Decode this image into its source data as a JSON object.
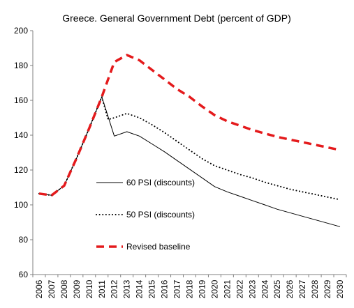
{
  "chart_data": {
    "type": "line",
    "title": "Greece.  General Government Debt (percent of GDP)",
    "xlabel": "",
    "ylabel": "",
    "ylim": [
      60,
      200
    ],
    "yticks": [
      60,
      80,
      100,
      120,
      140,
      160,
      180,
      200
    ],
    "grid": false,
    "legend_position": "inside-left",
    "categories": [
      "2006",
      "2007",
      "2008",
      "2009",
      "2010",
      "2011",
      "2012",
      "2013",
      "2014",
      "2015",
      "2016",
      "2017",
      "2018",
      "2019",
      "2020",
      "2021",
      "2022",
      "2023",
      "2024",
      "2025",
      "2026",
      "2027",
      "2028",
      "2029",
      "2030"
    ],
    "series": [
      {
        "name": "60 PSI (discounts)",
        "style": "solid",
        "color": "#000000",
        "x": [
          2006,
          2007,
          2008,
          2009,
          2010,
          2011,
          2012,
          2013,
          2014,
          2015,
          2016,
          2017,
          2018,
          2019,
          2020,
          2021,
          2022,
          2023,
          2024,
          2025,
          2026,
          2027,
          2028,
          2029,
          2030
        ],
        "values": [
          106.5,
          105.5,
          111,
          127,
          144,
          162,
          139.5,
          142,
          139.5,
          135,
          130.5,
          125.5,
          120.5,
          115.5,
          110.5,
          107.5,
          105,
          102.5,
          100,
          97.5,
          95.5,
          93.5,
          91.5,
          89.5,
          87.5
        ]
      },
      {
        "name": "50 PSI (discounts)",
        "style": "dotted",
        "color": "#000000",
        "x": [
          2006,
          2007,
          2008,
          2009,
          2010,
          2011,
          2011.5,
          2012,
          2013,
          2014,
          2015,
          2016,
          2017,
          2018,
          2019,
          2020,
          2021,
          2022,
          2023,
          2024,
          2025,
          2026,
          2027,
          2028,
          2029,
          2030
        ],
        "values": [
          106.5,
          105.5,
          111,
          127,
          144,
          162,
          149,
          150,
          152.5,
          150,
          146,
          141.5,
          136.5,
          131.5,
          126.5,
          122.5,
          120,
          117.5,
          115.5,
          113,
          111,
          109,
          107.5,
          106,
          104.5,
          103
        ]
      },
      {
        "name": "Revised baseline",
        "style": "dashed",
        "color": "#e41a1c",
        "x": [
          2006,
          2007,
          2008,
          2009,
          2010,
          2011,
          2012,
          2013,
          2014,
          2015,
          2016,
          2017,
          2018,
          2019,
          2020,
          2021,
          2022,
          2023,
          2024,
          2025,
          2026,
          2027,
          2028,
          2029,
          2030
        ],
        "values": [
          106.5,
          105.5,
          111,
          127,
          144,
          162,
          182,
          186,
          183,
          177.5,
          172,
          166.5,
          162,
          156.5,
          151.5,
          148,
          145.5,
          143,
          141,
          139,
          137.5,
          136,
          134.5,
          133,
          131.5
        ]
      }
    ]
  }
}
